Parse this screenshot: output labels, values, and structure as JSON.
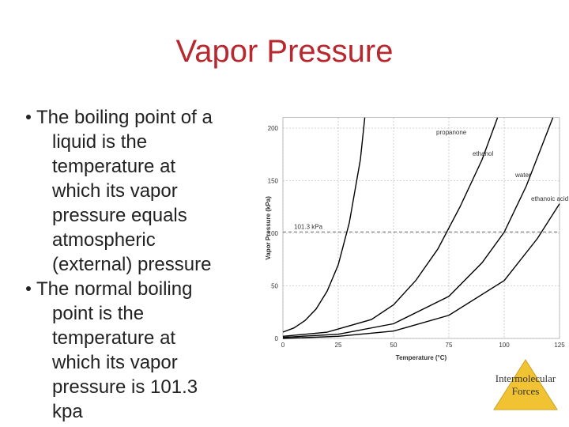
{
  "slide": {
    "title": "Vapor Pressure",
    "bullets": [
      [
        "The boiling point of a",
        "liquid is the",
        "temperature at",
        "which its vapor",
        "pressure equals",
        "atmospheric",
        "(external) pressure"
      ],
      [
        "The normal boiling",
        "point is the",
        "temperature at",
        "which its vapor",
        "pressure is 101.3",
        "kpa"
      ]
    ],
    "button": [
      "Intermolecular",
      "Forces"
    ]
  },
  "chart_data": {
    "type": "line",
    "x_label": "Temperature (°C)",
    "y_label": "Vapor Pressure (kPa)",
    "xlim": [
      0,
      125
    ],
    "xticks": [
      0,
      25,
      50,
      75,
      100,
      125
    ],
    "ylim": [
      0,
      210
    ],
    "yticks": [
      0,
      50,
      100,
      150,
      200
    ],
    "grid": true,
    "reference": {
      "value": 101.3,
      "label": "101.3 kPa"
    },
    "series": [
      {
        "name": "propanone",
        "color": "#000000",
        "x": [
          0,
          5,
          10,
          15,
          20,
          25,
          30,
          35,
          37
        ],
        "values": [
          6,
          10,
          17,
          28,
          45,
          70,
          110,
          170,
          210
        ]
      },
      {
        "name": "ethanol",
        "color": "#000000",
        "x": [
          0,
          20,
          40,
          50,
          60,
          70,
          80,
          90,
          97
        ],
        "values": [
          2,
          6,
          18,
          32,
          55,
          85,
          125,
          170,
          210
        ]
      },
      {
        "name": "water",
        "color": "#000000",
        "x": [
          0,
          25,
          50,
          75,
          90,
          100,
          110,
          122
        ],
        "values": [
          1,
          4,
          14,
          40,
          72,
          101,
          145,
          210
        ]
      },
      {
        "name": "ethanoic acid",
        "color": "#000000",
        "x": [
          0,
          25,
          50,
          75,
          100,
          115,
          125
        ],
        "values": [
          0,
          2,
          7,
          22,
          55,
          95,
          128
        ]
      }
    ]
  }
}
